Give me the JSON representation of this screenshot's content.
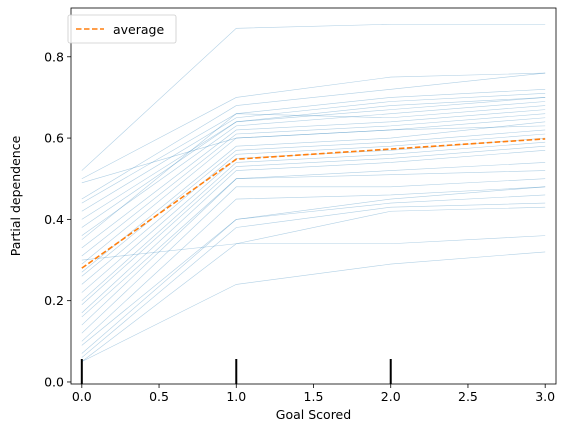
{
  "chart_data": {
    "type": "line",
    "title": "",
    "xlabel": "Goal Scored",
    "ylabel": "Partial dependence",
    "xlim": [
      -0.07,
      3.07
    ],
    "ylim": [
      -0.005,
      0.92
    ],
    "x": [
      0,
      1,
      2,
      3
    ],
    "xticks": [
      0.0,
      0.5,
      1.0,
      1.5,
      2.0,
      2.5,
      3.0
    ],
    "xtick_labels": [
      "0.0",
      "0.5",
      "1.0",
      "1.5",
      "2.0",
      "2.5",
      "3.0"
    ],
    "yticks": [
      0.0,
      0.2,
      0.4,
      0.6,
      0.8
    ],
    "ytick_labels": [
      "0.0",
      "0.2",
      "0.4",
      "0.6",
      "0.8"
    ],
    "rug_x": [
      0,
      1,
      2
    ],
    "legend": {
      "position": "top-left",
      "entries": [
        "average"
      ]
    },
    "grid": false,
    "colors": {
      "ice": "#1f77b4",
      "average": "#ff7f0e"
    },
    "average": {
      "name": "average",
      "values": [
        0.28,
        0.548,
        0.573,
        0.598
      ]
    },
    "ice_lines": [
      [
        0.52,
        0.87,
        0.88,
        0.88
      ],
      [
        0.5,
        0.7,
        0.75,
        0.76
      ],
      [
        0.45,
        0.68,
        0.72,
        0.76
      ],
      [
        0.44,
        0.66,
        0.7,
        0.72
      ],
      [
        0.42,
        0.65,
        0.69,
        0.71
      ],
      [
        0.4,
        0.64,
        0.68,
        0.7
      ],
      [
        0.38,
        0.64,
        0.67,
        0.7
      ],
      [
        0.36,
        0.63,
        0.66,
        0.69
      ],
      [
        0.35,
        0.66,
        0.65,
        0.68
      ],
      [
        0.33,
        0.62,
        0.64,
        0.67
      ],
      [
        0.31,
        0.61,
        0.63,
        0.66
      ],
      [
        0.29,
        0.6,
        0.62,
        0.65
      ],
      [
        0.27,
        0.58,
        0.6,
        0.64
      ],
      [
        0.26,
        0.57,
        0.59,
        0.62
      ],
      [
        0.24,
        0.56,
        0.58,
        0.61
      ],
      [
        0.22,
        0.55,
        0.57,
        0.6
      ],
      [
        0.2,
        0.54,
        0.56,
        0.59
      ],
      [
        0.19,
        0.53,
        0.55,
        0.58
      ],
      [
        0.17,
        0.52,
        0.54,
        0.57
      ],
      [
        0.16,
        0.5,
        0.52,
        0.54
      ],
      [
        0.14,
        0.5,
        0.51,
        0.52
      ],
      [
        0.12,
        0.48,
        0.48,
        0.5
      ],
      [
        0.1,
        0.45,
        0.46,
        0.48
      ],
      [
        0.09,
        0.4,
        0.45,
        0.48
      ],
      [
        0.07,
        0.4,
        0.44,
        0.46
      ],
      [
        0.06,
        0.38,
        0.43,
        0.44
      ],
      [
        0.05,
        0.34,
        0.42,
        0.43
      ],
      [
        0.3,
        0.34,
        0.34,
        0.36
      ],
      [
        0.05,
        0.24,
        0.29,
        0.32
      ],
      [
        0.49,
        0.6,
        0.62,
        0.63
      ]
    ]
  }
}
